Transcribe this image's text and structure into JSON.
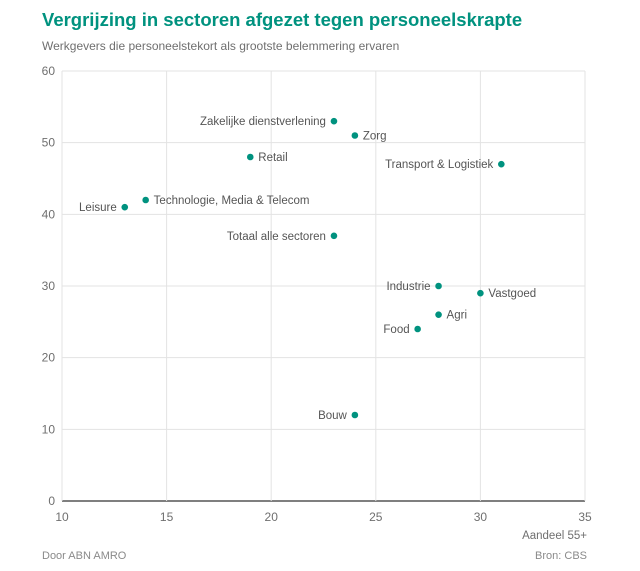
{
  "header": {
    "title": "Vergrijzing in sectoren afgezet tegen personeelskrapte",
    "subtitle": "Werkgevers die personeelstekort als grootste belemmering ervaren"
  },
  "footer": {
    "left": "Door ABN AMRO",
    "right": "Bron: CBS"
  },
  "chart_data": {
    "type": "scatter",
    "title": "Vergrijzing in sectoren afgezet tegen personeelskrapte",
    "subtitle": "Werkgevers die personeelstekort als grootste belemmering ervaren",
    "xlabel": "Aandeel 55+",
    "ylabel": "",
    "xlim": [
      10,
      35
    ],
    "ylim": [
      0,
      60
    ],
    "xticks": [
      10,
      15,
      20,
      25,
      30,
      35
    ],
    "yticks": [
      0,
      10,
      20,
      30,
      40,
      50,
      60
    ],
    "grid": true,
    "point_color": "#00927f",
    "points": [
      {
        "label": "Zakelijke dienstverlening",
        "x": 23,
        "y": 53,
        "label_side": "left"
      },
      {
        "label": "Zorg",
        "x": 24,
        "y": 51,
        "label_side": "right"
      },
      {
        "label": "Retail",
        "x": 19,
        "y": 48,
        "label_side": "right"
      },
      {
        "label": "Transport & Logistiek",
        "x": 31,
        "y": 47,
        "label_side": "left"
      },
      {
        "label": "Technologie, Media & Telecom",
        "x": 14,
        "y": 42,
        "label_side": "right"
      },
      {
        "label": "Leisure",
        "x": 13,
        "y": 41,
        "label_side": "left"
      },
      {
        "label": "Totaal alle sectoren",
        "x": 23,
        "y": 37,
        "label_side": "left"
      },
      {
        "label": "Industrie",
        "x": 28,
        "y": 30,
        "label_side": "left"
      },
      {
        "label": "Vastgoed",
        "x": 30,
        "y": 29,
        "label_side": "right"
      },
      {
        "label": "Agri",
        "x": 28,
        "y": 26,
        "label_side": "right"
      },
      {
        "label": "Food",
        "x": 27,
        "y": 24,
        "label_side": "left"
      },
      {
        "label": "Bouw",
        "x": 24,
        "y": 12,
        "label_side": "left"
      }
    ]
  }
}
